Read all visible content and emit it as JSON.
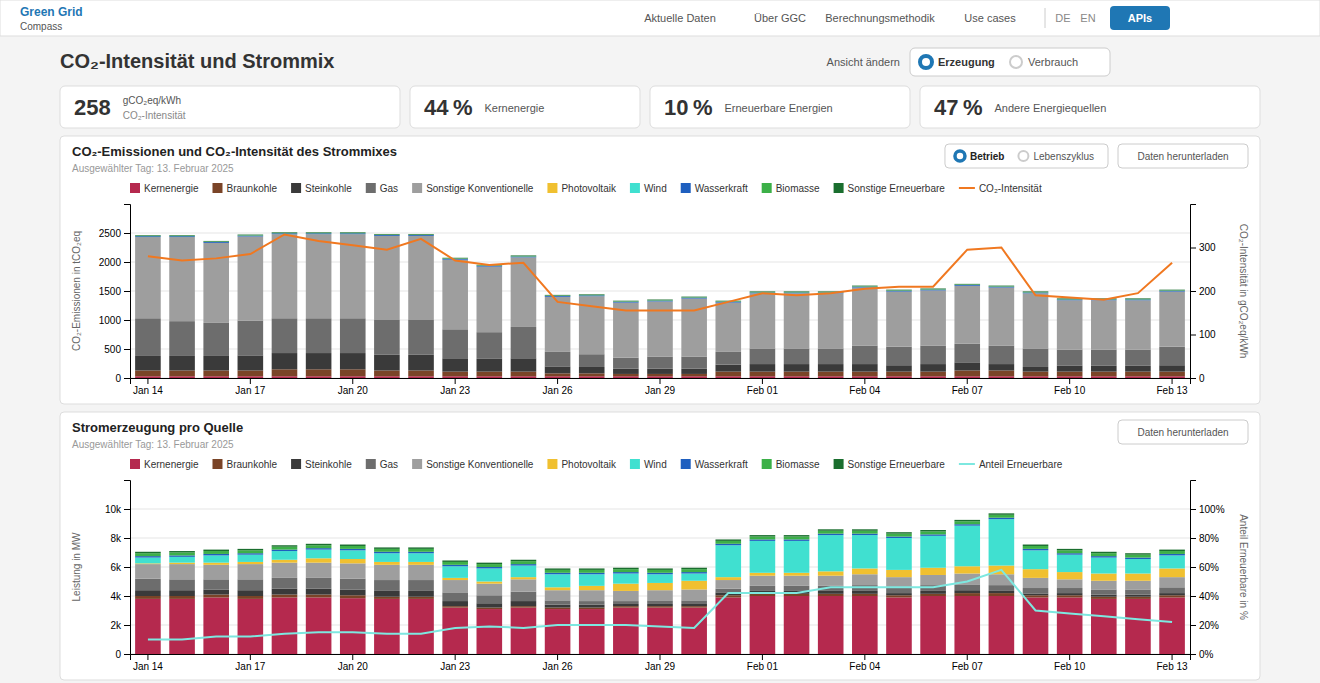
{
  "title": "CO₂-Intensität und Strommix",
  "annotations": [
    "Green Grid",
    "Compass",
    "Aktuelle Daten",
    "Über GGC",
    "Berechnungsmethodik",
    "Use cases",
    "DE",
    "EN",
    "APIs",
    "Ansicht ändern",
    "Erzeugung",
    "Verbrauch",
    "258",
    "gCO₂eq/kWh",
    "CO₂-Intensität",
    "44 %",
    "Kernenergie",
    "10 %",
    "Erneuerbare Energien",
    "47 %",
    "Andere Energiequellen"
  ],
  "chart_data": [
    {
      "type": "bar",
      "stacked": true,
      "title": "CO₂-Emissionen und CO₂-Intensität des Strommixes",
      "subtitle": "Ausgewählter Tag: 13. Februar 2025",
      "annotations": [
        "Betrieb",
        "Lebenszyklus",
        "Daten herunterladen"
      ],
      "ylabel": "CO₂-Emissionen in tCO₂eq",
      "y2label": "CO₂-Intensität in gCO₂eq/kWh",
      "categories": [
        "Jan 14",
        null,
        null,
        "Jan 17",
        null,
        null,
        "Jan 20",
        null,
        null,
        "Jan 23",
        null,
        null,
        "Jan 26",
        null,
        null,
        "Jan 29",
        null,
        null,
        "Feb 01",
        null,
        null,
        "Feb 04",
        null,
        null,
        "Feb 07",
        null,
        null,
        "Feb 10",
        null,
        null,
        "Feb 13"
      ],
      "series": [
        {
          "name": "Kernenergie",
          "color": "#b5294e",
          "values": [
            30,
            30,
            30,
            30,
            30,
            30,
            30,
            30,
            30,
            30,
            30,
            30,
            30,
            30,
            30,
            30,
            30,
            30,
            30,
            30,
            30,
            30,
            30,
            30,
            30,
            30,
            30,
            30,
            30,
            30,
            30
          ]
        },
        {
          "name": "Braunkohle",
          "color": "#7a4427",
          "values": [
            100,
            100,
            100,
            100,
            120,
            120,
            120,
            100,
            100,
            80,
            80,
            80,
            50,
            50,
            40,
            40,
            40,
            80,
            80,
            80,
            80,
            80,
            80,
            80,
            100,
            100,
            80,
            80,
            80,
            80,
            80
          ]
        },
        {
          "name": "Steinkohle",
          "color": "#3a3a3a",
          "values": [
            250,
            250,
            250,
            260,
            280,
            280,
            280,
            270,
            270,
            230,
            220,
            230,
            120,
            110,
            90,
            90,
            90,
            120,
            130,
            130,
            130,
            130,
            110,
            130,
            140,
            110,
            80,
            100,
            100,
            100,
            110
          ]
        },
        {
          "name": "Gas",
          "color": "#6d6d6d",
          "values": [
            650,
            600,
            570,
            600,
            600,
            600,
            600,
            600,
            600,
            500,
            460,
            540,
            250,
            220,
            190,
            210,
            210,
            220,
            270,
            270,
            270,
            320,
            320,
            320,
            320,
            320,
            320,
            280,
            280,
            280,
            320
          ]
        },
        {
          "name": "Sonstige Konventionelle",
          "color": "#9e9e9e",
          "values": [
            1400,
            1450,
            1380,
            1450,
            1450,
            1450,
            1450,
            1450,
            1450,
            1200,
            1130,
            1200,
            950,
            1000,
            950,
            950,
            1000,
            850,
            950,
            950,
            950,
            1000,
            950,
            950,
            1000,
            1000,
            950,
            850,
            850,
            850,
            950
          ]
        },
        {
          "name": "Photovoltaik",
          "color": "#f0c030",
          "values": [
            0,
            0,
            0,
            0,
            0,
            0,
            0,
            0,
            0,
            0,
            0,
            0,
            0,
            0,
            0,
            0,
            0,
            0,
            0,
            0,
            0,
            0,
            0,
            0,
            0,
            0,
            0,
            0,
            0,
            0,
            0
          ]
        },
        {
          "name": "Wind",
          "color": "#40e0d0",
          "values": [
            0,
            0,
            0,
            0,
            0,
            0,
            0,
            0,
            0,
            0,
            0,
            0,
            0,
            0,
            0,
            0,
            0,
            0,
            0,
            0,
            0,
            0,
            0,
            0,
            0,
            0,
            0,
            0,
            0,
            0,
            0
          ]
        },
        {
          "name": "Wasserkraft",
          "color": "#1e5fbf",
          "values": [
            15,
            15,
            15,
            15,
            15,
            15,
            15,
            15,
            15,
            15,
            15,
            15,
            15,
            15,
            15,
            15,
            15,
            15,
            15,
            15,
            15,
            15,
            15,
            15,
            15,
            15,
            15,
            15,
            15,
            15,
            15
          ]
        },
        {
          "name": "Biomasse",
          "color": "#3cb048",
          "values": [
            8,
            8,
            8,
            8,
            8,
            8,
            8,
            8,
            8,
            8,
            8,
            8,
            8,
            8,
            8,
            8,
            8,
            8,
            8,
            8,
            8,
            8,
            8,
            8,
            8,
            8,
            8,
            8,
            8,
            8,
            8
          ]
        },
        {
          "name": "Sonstige Erneuerbare",
          "color": "#1a6e2e",
          "values": [
            10,
            10,
            10,
            10,
            10,
            10,
            10,
            10,
            10,
            10,
            10,
            10,
            10,
            10,
            10,
            10,
            10,
            10,
            10,
            10,
            10,
            10,
            10,
            10,
            10,
            10,
            10,
            10,
            10,
            10,
            10
          ]
        },
        {
          "name": "CO₂-Intensität",
          "type": "line",
          "axis": "y2",
          "color": "#f07820",
          "values": [
            280,
            270,
            275,
            285,
            330,
            315,
            305,
            295,
            320,
            270,
            260,
            265,
            175,
            165,
            155,
            155,
            155,
            175,
            195,
            190,
            195,
            205,
            210,
            210,
            295,
            300,
            190,
            185,
            180,
            195,
            265
          ]
        }
      ],
      "ylim": [
        0,
        3000
      ],
      "yticks": [
        0,
        500,
        1000,
        1500,
        2000,
        2500
      ],
      "y2lim": [
        0,
        400
      ],
      "y2ticks": [
        0,
        100,
        200,
        300
      ],
      "grid": true,
      "legend": "top"
    },
    {
      "type": "bar",
      "stacked": true,
      "title": "Stromerzeugung pro Quelle",
      "subtitle": "Ausgewählter Tag: 13. Februar 2025",
      "annotations": [
        "Daten herunterladen"
      ],
      "ylabel": "Leistung in MW",
      "y2label": "Anteil Erneuerbare in %",
      "categories": [
        "Jan 14",
        null,
        null,
        "Jan 17",
        null,
        null,
        "Jan 20",
        null,
        null,
        "Jan 23",
        null,
        null,
        "Jan 26",
        null,
        null,
        "Jan 29",
        null,
        null,
        "Feb 01",
        null,
        null,
        "Feb 04",
        null,
        null,
        "Feb 07",
        null,
        null,
        "Feb 10",
        null,
        null,
        "Feb 13"
      ],
      "series": [
        {
          "name": "Kernenergie",
          "color": "#b5294e",
          "values": [
            3800,
            3800,
            3900,
            3800,
            3900,
            3900,
            3850,
            3800,
            3800,
            3200,
            3100,
            3200,
            3100,
            3100,
            3200,
            3200,
            3200,
            3900,
            4000,
            4000,
            4000,
            4000,
            3900,
            4000,
            4000,
            4000,
            3900,
            3900,
            3800,
            3800,
            3900
          ]
        },
        {
          "name": "Braunkohle",
          "color": "#7a4427",
          "values": [
            200,
            200,
            200,
            200,
            200,
            200,
            200,
            150,
            150,
            100,
            100,
            100,
            100,
            100,
            100,
            100,
            100,
            150,
            150,
            150,
            150,
            150,
            150,
            150,
            200,
            200,
            150,
            150,
            150,
            150,
            150
          ]
        },
        {
          "name": "Steinkohle",
          "color": "#3a3a3a",
          "values": [
            400,
            400,
            350,
            400,
            400,
            400,
            400,
            400,
            400,
            350,
            300,
            350,
            200,
            200,
            150,
            150,
            150,
            200,
            200,
            200,
            200,
            200,
            150,
            200,
            200,
            150,
            100,
            150,
            150,
            150,
            150
          ]
        },
        {
          "name": "Gas",
          "color": "#6d6d6d",
          "values": [
            800,
            750,
            700,
            750,
            750,
            750,
            750,
            750,
            750,
            600,
            550,
            650,
            300,
            250,
            200,
            250,
            250,
            250,
            350,
            350,
            350,
            400,
            400,
            400,
            400,
            400,
            400,
            350,
            350,
            350,
            400
          ]
        },
        {
          "name": "Sonstige Konventionelle",
          "color": "#9e9e9e",
          "values": [
            1000,
            1050,
            1000,
            1050,
            1050,
            1050,
            1050,
            1050,
            1050,
            850,
            800,
            850,
            700,
            750,
            700,
            700,
            750,
            600,
            700,
            700,
            700,
            750,
            700,
            700,
            750,
            750,
            700,
            600,
            600,
            600,
            700
          ]
        },
        {
          "name": "Photovoltaik",
          "color": "#f0c030",
          "values": [
            50,
            100,
            150,
            150,
            200,
            300,
            300,
            200,
            200,
            150,
            150,
            150,
            200,
            300,
            500,
            500,
            600,
            200,
            200,
            200,
            300,
            400,
            500,
            500,
            500,
            600,
            600,
            500,
            500,
            500,
            600
          ]
        },
        {
          "name": "Wind",
          "color": "#40e0d0",
          "values": [
            400,
            400,
            500,
            500,
            600,
            600,
            600,
            600,
            600,
            800,
            900,
            800,
            900,
            800,
            700,
            600,
            500,
            2200,
            2200,
            2200,
            2500,
            2300,
            2200,
            2200,
            2800,
            3200,
            1300,
            1200,
            1100,
            1000,
            900
          ]
        },
        {
          "name": "Wasserkraft",
          "color": "#1e5fbf",
          "values": [
            100,
            100,
            100,
            100,
            100,
            100,
            100,
            100,
            100,
            100,
            100,
            100,
            100,
            100,
            100,
            100,
            100,
            100,
            100,
            100,
            100,
            100,
            100,
            100,
            100,
            100,
            100,
            100,
            100,
            100,
            100
          ]
        },
        {
          "name": "Biomasse",
          "color": "#3cb048",
          "values": [
            200,
            200,
            200,
            200,
            200,
            200,
            200,
            200,
            200,
            200,
            200,
            200,
            200,
            200,
            200,
            200,
            200,
            200,
            200,
            200,
            200,
            200,
            200,
            200,
            200,
            200,
            200,
            200,
            200,
            200,
            200
          ]
        },
        {
          "name": "Sonstige Erneuerbare",
          "color": "#1a6e2e",
          "values": [
            100,
            100,
            100,
            100,
            100,
            100,
            100,
            100,
            100,
            100,
            100,
            100,
            100,
            100,
            100,
            100,
            100,
            100,
            100,
            100,
            100,
            100,
            100,
            100,
            100,
            100,
            100,
            100,
            100,
            100,
            100
          ]
        },
        {
          "name": "Anteil Erneuerbare",
          "type": "line",
          "axis": "y2",
          "color": "#7de8e0",
          "values": [
            10,
            10,
            12,
            12,
            14,
            15,
            15,
            14,
            14,
            18,
            19,
            18,
            20,
            20,
            20,
            19,
            18,
            42,
            42,
            42,
            46,
            46,
            46,
            46,
            50,
            58,
            30,
            28,
            26,
            24,
            22
          ]
        }
      ],
      "ylim": [
        0,
        12000
      ],
      "yticks": [
        0,
        {
          "value": 2000,
          "label": "2k"
        },
        {
          "value": 4000,
          "label": "4k"
        },
        {
          "value": 6000,
          "label": "6k"
        },
        {
          "value": 8000,
          "label": "8k"
        },
        {
          "value": 10000,
          "label": "10k"
        }
      ],
      "y2lim": [
        0,
        120
      ],
      "y2ticks": [
        {
          "value": 0,
          "label": "0%"
        },
        {
          "value": 20,
          "label": "20%"
        },
        {
          "value": 40,
          "label": "40%"
        },
        {
          "value": 60,
          "label": "60%"
        },
        {
          "value": 80,
          "label": "80%"
        },
        {
          "value": 100,
          "label": "100%"
        }
      ],
      "grid": true,
      "legend": "top"
    }
  ]
}
